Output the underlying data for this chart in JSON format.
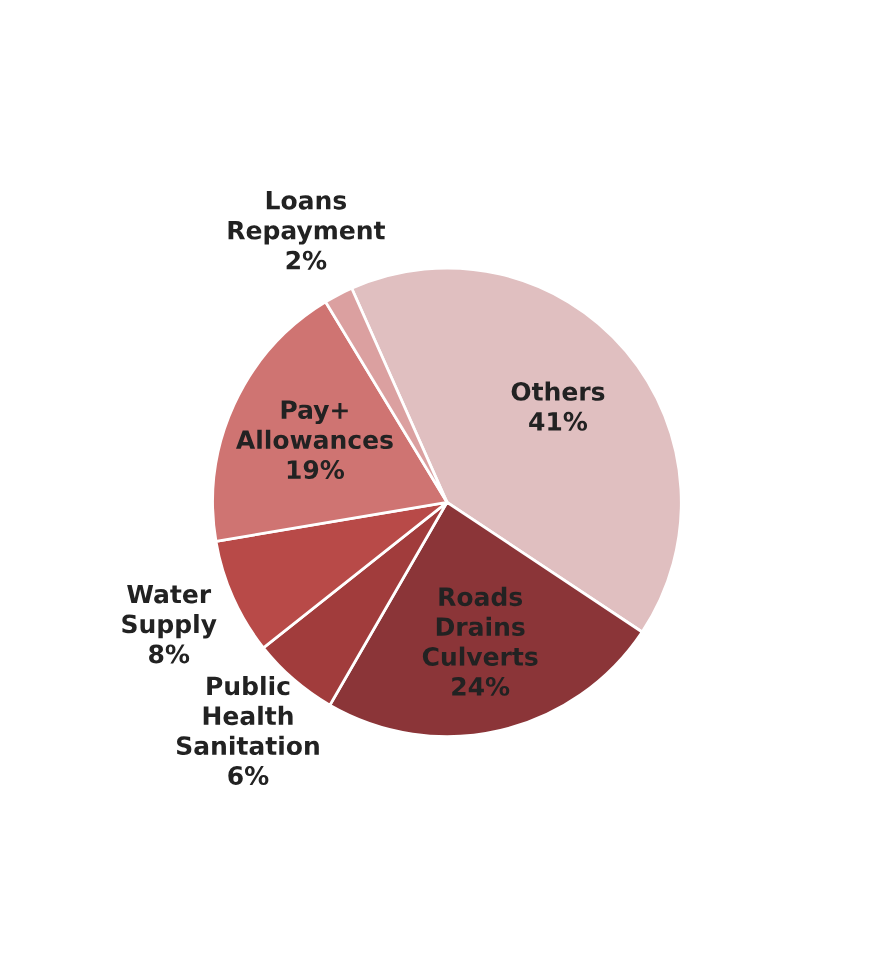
{
  "chart_data": {
    "type": "pie",
    "categories": [
      "Others",
      "Roads\nDrains\nCulverts",
      "Public\nHealth\nSanitation",
      "Water\nSupply",
      "Pay+\nAllowances",
      "Loans\nRepayment"
    ],
    "values": [
      41,
      24,
      6,
      8,
      19,
      2
    ],
    "colors": [
      "#e0bfc0",
      "#8b3538",
      "#a13c3c",
      "#b84a48",
      "#cf7472",
      "#dba0a0"
    ],
    "value_labels": [
      "41%",
      "24%",
      "6%",
      "8%",
      "19%",
      "2%"
    ]
  }
}
